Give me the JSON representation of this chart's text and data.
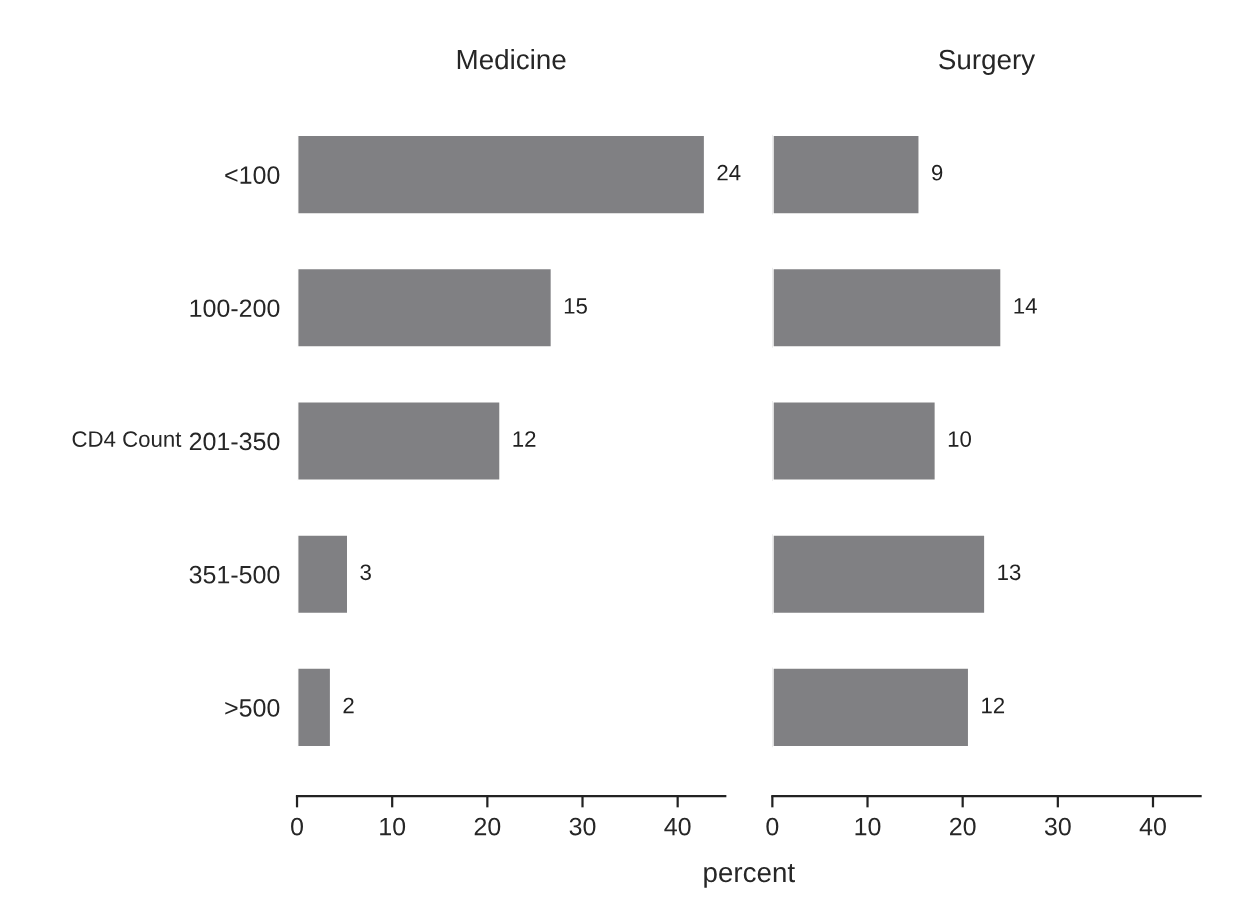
{
  "chart_data": [
    {
      "type": "bar",
      "orientation": "horizontal",
      "title": "Medicine",
      "ylabel": "CD4 Count",
      "xlabel": "percent",
      "categories": [
        "<100",
        "100-200",
        "201-350",
        "351-500",
        ">500"
      ],
      "series": [
        {
          "color": "#808083",
          "values": [
            42.9,
            26.8,
            21.4,
            5.4,
            3.6
          ]
        }
      ],
      "annotations": [
        {
          "text": "24",
          "x": 42.9,
          "y": "<100"
        },
        {
          "text": "15",
          "x": 26.8,
          "y": "100-200"
        },
        {
          "text": "12",
          "x": 21.4,
          "y": "201-350"
        },
        {
          "text": "3",
          "x": 5.4,
          "y": "351-500"
        },
        {
          "text": "2",
          "x": 3.6,
          "y": ">500"
        }
      ],
      "xlim": [
        0,
        45
      ],
      "xticks": [
        0,
        10,
        20,
        30,
        40
      ],
      "grid": false,
      "legend": false
    },
    {
      "type": "bar",
      "orientation": "horizontal",
      "title": "Surgery",
      "categories": [
        null,
        null,
        null,
        null,
        null
      ],
      "series": [
        {
          "color": "#808083",
          "values": [
            15.5,
            24.1,
            17.2,
            22.4,
            20.7
          ]
        }
      ],
      "annotations": [
        {
          "text": "9",
          "x": 15.5
        },
        {
          "text": "14",
          "x": 24.1
        },
        {
          "text": "10",
          "x": 17.2
        },
        {
          "text": "13",
          "x": 22.4
        },
        {
          "text": "12",
          "x": 20.7
        }
      ],
      "xlim": [
        0,
        45
      ],
      "xticks": [
        0,
        10,
        20,
        30,
        40
      ],
      "tick_labels": "x",
      "grid": false,
      "legend": false
    }
  ]
}
